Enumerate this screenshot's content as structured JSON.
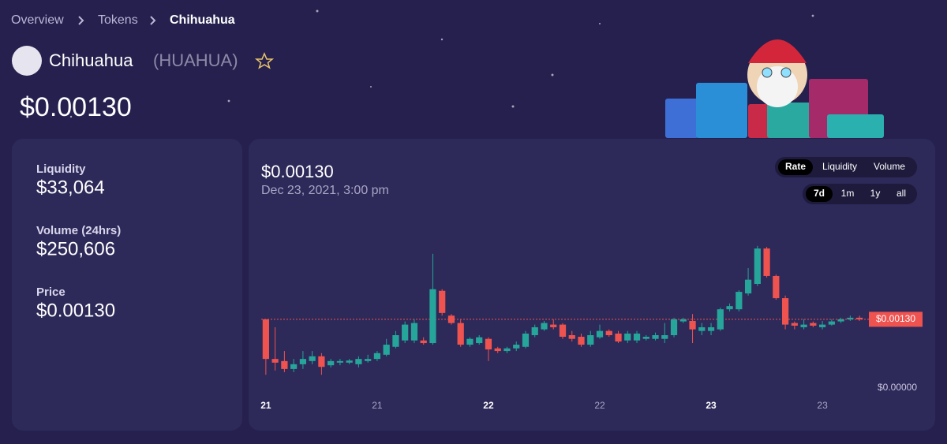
{
  "breadcrumb": [
    "Overview",
    "Tokens",
    "Chihuahua"
  ],
  "token": {
    "name": "Chihuahua",
    "symbol": "(HUAHUA)",
    "price": "$0.00130"
  },
  "stats": [
    {
      "label": "Liquidity",
      "value": "$33,064"
    },
    {
      "label": "Volume (24hrs)",
      "value": "$250,606"
    },
    {
      "label": "Price",
      "value": "$0.00130"
    }
  ],
  "chart_data": {
    "type": "candlestick",
    "price": "$0.00130",
    "date": "Dec 23, 2021, 3:00 pm",
    "tabs": [
      "Rate",
      "Liquidity",
      "Volume"
    ],
    "ranges": [
      "7d",
      "1m",
      "1y",
      "all"
    ],
    "up_color": "#26a69a",
    "down_color": "#ef5350",
    "xlim": [
      -0.5,
      64.5
    ],
    "xticks": [
      {
        "value": 0,
        "label": "21"
      },
      {
        "value": 12,
        "label": "21"
      },
      {
        "value": 24,
        "label": "22"
      },
      {
        "value": 36,
        "label": "22"
      },
      {
        "value": 48,
        "label": "23"
      },
      {
        "value": 60,
        "label": "23"
      }
    ],
    "ylim": [
      0,
      0.003
    ],
    "yticks": [
      {
        "value": 0,
        "label": "$0.00000"
      }
    ],
    "current": {
      "value": 0.0013,
      "label": "$0.00130"
    },
    "open": [
      0.0013,
      0.00055,
      0.00051,
      0.00036,
      0.00045,
      0.00051,
      0.0006,
      0.00043,
      0.00048,
      0.00048,
      0.00045,
      0.00051,
      0.00055,
      0.00063,
      0.00078,
      0.0009,
      0.0009,
      0.0009,
      0.00085,
      0.00184,
      0.00137,
      0.00123,
      0.00082,
      0.00085,
      0.00093,
      0.00075,
      0.0007,
      0.00075,
      0.00078,
      0.001,
      0.00111,
      0.0012,
      0.0012,
      0.001,
      0.00097,
      0.00082,
      0.00096,
      0.00108,
      0.00103,
      0.0009,
      0.0009,
      0.00093,
      0.00093,
      0.00093,
      0.001,
      0.00126,
      0.00127,
      0.00108,
      0.00108,
      0.00111,
      0.00149,
      0.00149,
      0.00179,
      0.00197,
      0.00264,
      0.00212,
      0.0017,
      0.00123,
      0.00115,
      0.00123,
      0.00115,
      0.0012,
      0.00126,
      0.0013,
      0.00133
    ],
    "high": [
      0.0013,
      0.00115,
      0.0007,
      0.00055,
      0.0007,
      0.0007,
      0.00066,
      0.00055,
      0.00055,
      0.00055,
      0.0006,
      0.00063,
      0.0007,
      0.00093,
      0.00108,
      0.00126,
      0.0013,
      0.00096,
      0.00254,
      0.00187,
      0.0014,
      0.0013,
      0.00096,
      0.001,
      0.00096,
      0.00078,
      0.00078,
      0.00088,
      0.00108,
      0.0012,
      0.00127,
      0.0013,
      0.00123,
      0.00108,
      0.00103,
      0.00108,
      0.0012,
      0.00111,
      0.00108,
      0.00108,
      0.00108,
      0.001,
      0.00105,
      0.00123,
      0.00133,
      0.00133,
      0.0014,
      0.00123,
      0.00123,
      0.00152,
      0.0016,
      0.00185,
      0.00227,
      0.00269,
      0.00267,
      0.00215,
      0.00175,
      0.00126,
      0.0013,
      0.00126,
      0.00127,
      0.0013,
      0.00133,
      0.00137,
      0.00137
    ],
    "low": [
      0.00025,
      0.00033,
      0.0003,
      0.0003,
      0.00036,
      0.00045,
      0.00025,
      0.00039,
      0.00043,
      0.00045,
      0.00039,
      0.00048,
      0.00051,
      0.0006,
      0.00075,
      0.00085,
      0.00085,
      0.00082,
      0.00082,
      0.00137,
      0.0012,
      0.00078,
      0.00078,
      0.00082,
      0.00051,
      0.00066,
      0.00066,
      0.0007,
      0.00075,
      0.00096,
      0.00108,
      0.00111,
      0.00093,
      0.00088,
      0.00078,
      0.00078,
      0.00093,
      0.00097,
      0.00085,
      0.00085,
      0.00085,
      0.0009,
      0.0009,
      0.00085,
      0.00096,
      0.00123,
      0.00085,
      0.001,
      0.001,
      0.00108,
      0.00145,
      0.00145,
      0.00175,
      0.00193,
      0.00209,
      0.00167,
      0.00111,
      0.00111,
      0.00111,
      0.00115,
      0.00111,
      0.00118,
      0.00123,
      0.00127,
      0.00127
    ],
    "close": [
      0.00055,
      0.00048,
      0.00036,
      0.00045,
      0.00055,
      0.0006,
      0.0004,
      0.00051,
      0.00051,
      0.00052,
      0.00055,
      0.00055,
      0.00066,
      0.00082,
      0.001,
      0.0012,
      0.00123,
      0.00085,
      0.00187,
      0.00142,
      0.00123,
      0.00082,
      0.00093,
      0.00096,
      0.00073,
      0.0007,
      0.00075,
      0.00082,
      0.00103,
      0.00115,
      0.00123,
      0.00115,
      0.00097,
      0.00093,
      0.00082,
      0.001,
      0.00108,
      0.001,
      0.00088,
      0.00103,
      0.00103,
      0.00097,
      0.001,
      0.001,
      0.0013,
      0.0013,
      0.00111,
      0.00115,
      0.00115,
      0.00149,
      0.00155,
      0.00182,
      0.00205,
      0.00264,
      0.00212,
      0.0017,
      0.0012,
      0.00118,
      0.0012,
      0.00118,
      0.0012,
      0.00126,
      0.0013,
      0.00133,
      0.0013
    ]
  }
}
